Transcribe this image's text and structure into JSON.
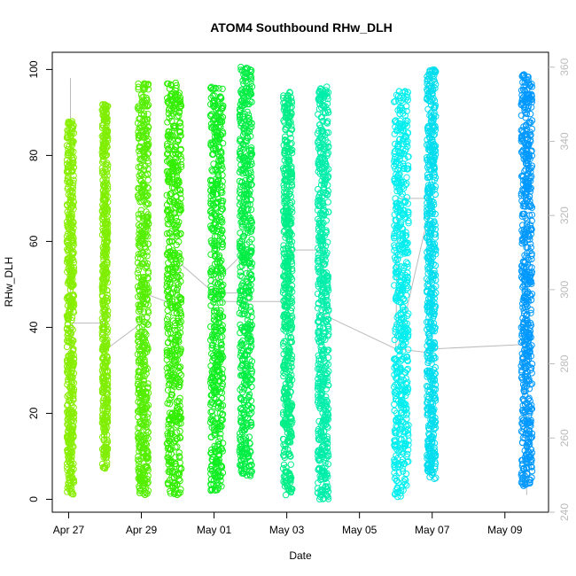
{
  "chart_data": {
    "type": "scatter",
    "title": "ATOM4 Southbound RHw_DLH",
    "xlabel": "Date",
    "ylabel": "RHw_DLH",
    "x_ticks": [
      "Apr 27",
      "Apr 29",
      "May 01",
      "May 03",
      "May 05",
      "May 07",
      "May 09"
    ],
    "x_tick_days": [
      0,
      2,
      4,
      6,
      8,
      10,
      12
    ],
    "xlim_days": [
      -0.45,
      13.2
    ],
    "y_ticks": [
      0,
      20,
      40,
      60,
      80,
      100
    ],
    "ylim": [
      -3,
      104
    ],
    "right_axis": {
      "ticks": [
        240,
        260,
        280,
        300,
        320,
        340,
        360
      ],
      "range": [
        240,
        364
      ],
      "color": "#bbbbbb"
    },
    "grid": false,
    "marker": "open-circle",
    "clusters": [
      {
        "x": [
          -0.05,
          0.15
        ],
        "y": [
          1,
          88
        ],
        "color": "#88ee00"
      },
      {
        "x": [
          0.92,
          1.08
        ],
        "y": [
          7,
          92
        ],
        "color": "#80ee00"
      },
      {
        "x": [
          1.9,
          2.2
        ],
        "y": [
          1,
          97
        ],
        "color": "#55ee00"
      },
      {
        "x": [
          2.7,
          3.1
        ],
        "y": [
          1,
          97
        ],
        "color": "#33ee00"
      },
      {
        "x": [
          3.9,
          4.25
        ],
        "y": [
          2,
          96
        ],
        "color": "#11ee22"
      },
      {
        "x": [
          4.7,
          5.05
        ],
        "y": [
          5,
          101
        ],
        "color": "#00ee44"
      },
      {
        "x": [
          5.9,
          6.15
        ],
        "y": [
          1,
          95
        ],
        "color": "#00ee88"
      },
      {
        "x": [
          6.85,
          7.15
        ],
        "y": [
          0,
          96
        ],
        "color": "#00eeaa"
      },
      {
        "x": [
          8.95,
          9.35
        ],
        "y": [
          0,
          95
        ],
        "color": "#00eeee"
      },
      {
        "x": [
          9.85,
          10.1
        ],
        "y": [
          4,
          100
        ],
        "color": "#00ddee"
      },
      {
        "x": [
          12.45,
          12.75
        ],
        "y": [
          3,
          99
        ],
        "color": "#0099ff"
      }
    ],
    "trace": {
      "color": "#bbbbbb",
      "x": [
        0.05,
        0.05,
        0.1,
        1.0,
        1.05,
        2.0,
        2.05,
        3.0,
        3.05,
        4.0,
        4.05,
        4.9,
        4.95,
        4.0,
        4.05,
        5.0,
        5.05,
        6.0,
        6.05,
        7.0,
        7.05,
        7.0,
        8.0,
        9.0,
        9.05,
        10.0,
        9.05,
        10.0,
        10.05,
        12.5,
        12.55,
        12.6
      ],
      "y": [
        98,
        28,
        41,
        41,
        35,
        41,
        48,
        45,
        55,
        48,
        51,
        58,
        48,
        48,
        46,
        46,
        46,
        46,
        58,
        58,
        46,
        43,
        39,
        35,
        70,
        70,
        35,
        34,
        35,
        36,
        20,
        1
      ]
    }
  }
}
